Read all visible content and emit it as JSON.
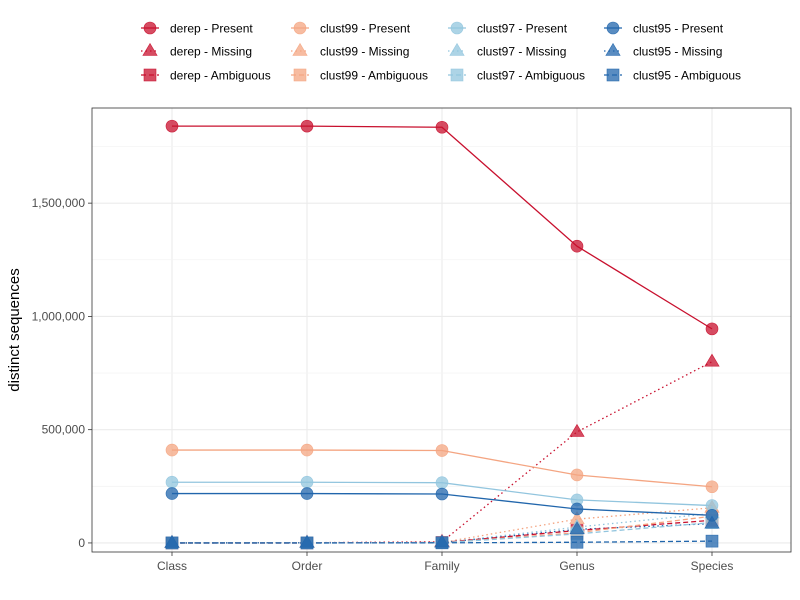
{
  "chart_data": {
    "type": "line",
    "title": "",
    "xlabel": "",
    "ylabel": "distinct sequences",
    "categories": [
      "Class",
      "Order",
      "Family",
      "Genus",
      "Species"
    ],
    "ylim": [
      -40000,
      1920000
    ],
    "yticks": [
      0,
      500000,
      1000000,
      1500000
    ],
    "ytick_labels": [
      "0",
      "500,000",
      "1,000,000",
      "1,500,000"
    ],
    "grid": true,
    "legend_position": "top",
    "series": [
      {
        "name": "derep - Present",
        "group": "derep",
        "status": "Present",
        "color": "#c8102e",
        "marker": "circle",
        "line": "solid",
        "values": [
          1840000,
          1840000,
          1835000,
          1310000,
          945000
        ]
      },
      {
        "name": "derep - Missing",
        "group": "derep",
        "status": "Missing",
        "color": "#c8102e",
        "marker": "triangle",
        "line": "dotted",
        "values": [
          0,
          1000,
          5000,
          490000,
          800000
        ]
      },
      {
        "name": "derep - Ambiguous",
        "group": "derep",
        "status": "Ambiguous",
        "color": "#c8102e",
        "marker": "square",
        "line": "dashed",
        "values": [
          0,
          0,
          2000,
          55000,
          100000
        ]
      },
      {
        "name": "clust99 - Present",
        "group": "clust99",
        "status": "Present",
        "color": "#f4a582",
        "marker": "circle",
        "line": "solid",
        "values": [
          410000,
          410000,
          408000,
          300000,
          248000
        ]
      },
      {
        "name": "clust99 - Missing",
        "group": "clust99",
        "status": "Missing",
        "color": "#f4a582",
        "marker": "triangle",
        "line": "dotted",
        "values": [
          0,
          500,
          2000,
          105000,
          155000
        ]
      },
      {
        "name": "clust99 - Ambiguous",
        "group": "clust99",
        "status": "Ambiguous",
        "color": "#f4a582",
        "marker": "square",
        "line": "dashed",
        "values": [
          0,
          0,
          1000,
          45000,
          118000
        ]
      },
      {
        "name": "clust97 - Present",
        "group": "clust97",
        "status": "Present",
        "color": "#92c5de",
        "marker": "circle",
        "line": "solid",
        "values": [
          268000,
          268000,
          266000,
          190000,
          165000
        ]
      },
      {
        "name": "clust97 - Missing",
        "group": "clust97",
        "status": "Missing",
        "color": "#92c5de",
        "marker": "triangle",
        "line": "dotted",
        "values": [
          0,
          300,
          1500,
          70000,
          130000
        ]
      },
      {
        "name": "clust97 - Ambiguous",
        "group": "clust97",
        "status": "Ambiguous",
        "color": "#92c5de",
        "marker": "square",
        "line": "dashed",
        "values": [
          0,
          0,
          800,
          40000,
          90000
        ]
      },
      {
        "name": "clust95 - Present",
        "group": "clust95",
        "status": "Present",
        "color": "#2166ac",
        "marker": "circle",
        "line": "solid",
        "values": [
          218000,
          218000,
          216000,
          150000,
          122000
        ]
      },
      {
        "name": "clust95 - Missing",
        "group": "clust95",
        "status": "Missing",
        "color": "#2166ac",
        "marker": "triangle",
        "line": "dotted",
        "values": [
          0,
          200,
          1000,
          60000,
          85000
        ]
      },
      {
        "name": "clust95 - Ambiguous",
        "group": "clust95",
        "status": "Ambiguous",
        "color": "#2166ac",
        "marker": "square",
        "line": "dashed",
        "values": [
          0,
          0,
          500,
          3000,
          8000
        ]
      }
    ]
  }
}
